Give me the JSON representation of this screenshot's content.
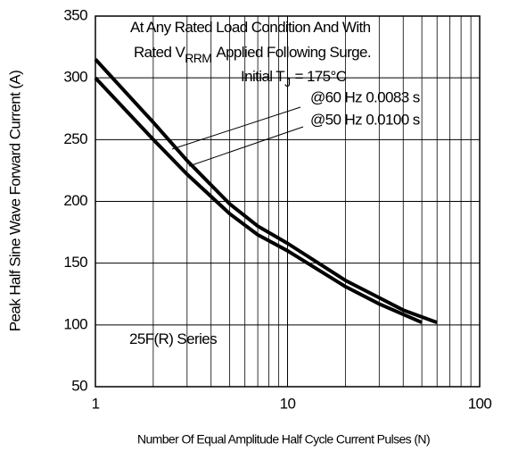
{
  "chart_data": {
    "type": "line",
    "xlabel": "Number Of Equal Amplitude Half Cycle Current Pulses (N)",
    "ylabel": "Peak Half Sine Wave Forward Current (A)",
    "xlog": true,
    "xlim": [
      1,
      100
    ],
    "xticks": [
      1,
      10,
      100
    ],
    "xminor": [
      2,
      3,
      4,
      5,
      6,
      7,
      8,
      9,
      20,
      30,
      40,
      50,
      60,
      70,
      80,
      90
    ],
    "ylim": [
      50,
      350
    ],
    "yticks": [
      50,
      100,
      150,
      200,
      250,
      300,
      350
    ],
    "grid": true,
    "annotations": [
      {
        "parts": [
          "At Any Rated Load Condition And With"
        ]
      },
      {
        "parts": [
          "Rated V",
          "RRM",
          "Applied Following Surge."
        ]
      },
      {
        "parts": [
          "Initial T",
          "J",
          "= 175°C"
        ]
      },
      {
        "parts": [
          "25F(R) Series"
        ]
      }
    ],
    "series": [
      {
        "name": "@60 Hz 0.0083 s",
        "color": "#000000",
        "x": [
          1,
          2,
          3,
          5,
          7,
          10,
          20,
          30,
          40,
          60
        ],
        "values": [
          315,
          264,
          233,
          198,
          180,
          166,
          136,
          122,
          112,
          102
        ]
      },
      {
        "name": "@50 Hz 0.0100 s",
        "color": "#000000",
        "x": [
          1,
          2,
          3,
          5,
          7,
          10,
          20,
          30,
          50
        ],
        "values": [
          300,
          250,
          222,
          190,
          173,
          160,
          131,
          117,
          102
        ]
      }
    ]
  }
}
